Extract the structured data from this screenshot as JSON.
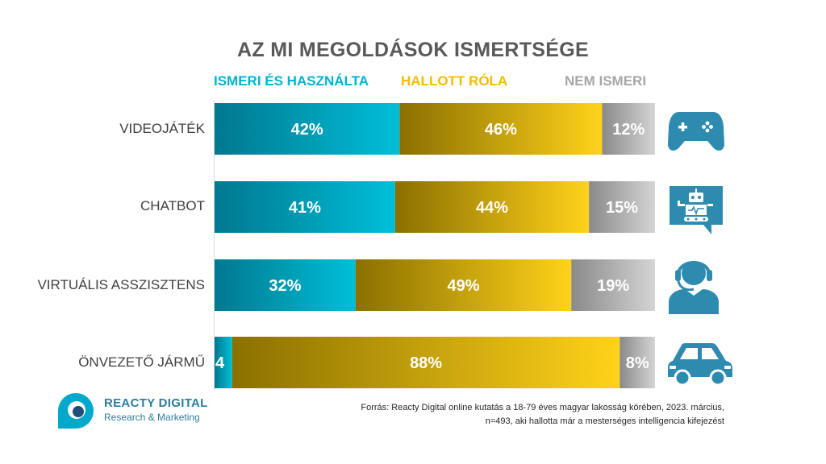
{
  "colors": {
    "known_dark": "#00788f",
    "known_light": "#00bfd8",
    "heard_dark": "#8a7000",
    "heard_light": "#ffd21a",
    "unknown_dark": "#8a8a8a",
    "unknown_light": "#d4d4d4",
    "icon": "#2e8bb0"
  },
  "chart_data": {
    "type": "bar",
    "orientation": "horizontal",
    "stacked": true,
    "percent": true,
    "title": "AZ MI MEGOLDÁSOK ISMERTSÉGE",
    "categories": [
      "VIDEOJÁTÉK",
      "CHATBOT",
      "VIRTUÁLIS ASSZISZTENS",
      "ÖNVEZETŐ JÁRMŰ"
    ],
    "series": [
      {
        "name": "ISMERI ÉS HASZNÁLTA",
        "color": "#00bfd8",
        "values": [
          42,
          41,
          32,
          4
        ],
        "labels": [
          "42%",
          "41%",
          "32%",
          "4"
        ]
      },
      {
        "name": "HALLOTT RÓLA",
        "color": "#ffd21a",
        "values": [
          46,
          44,
          49,
          88
        ],
        "labels": [
          "46%",
          "44%",
          "49%",
          "88%"
        ]
      },
      {
        "name": "NEM ISMERI",
        "color": "#bfbfbf",
        "values": [
          12,
          15,
          19,
          8
        ],
        "labels": [
          "12%",
          "15%",
          "19%",
          "8%"
        ]
      }
    ],
    "xlim": [
      0,
      100
    ],
    "legend": "top",
    "icons": [
      "gamepad-icon",
      "robot-chat-icon",
      "headset-person-icon",
      "car-icon"
    ]
  },
  "brand": {
    "name": "REACTY DIGITAL",
    "tagline": "Research & Marketing"
  },
  "source": {
    "line1": "Forrás: Reacty Digital online kutatás a 18-79 éves magyar lakosság körében, 2023. március,",
    "line2": "n=493, aki hallotta már a mesterséges intelligencia kifejezést"
  }
}
